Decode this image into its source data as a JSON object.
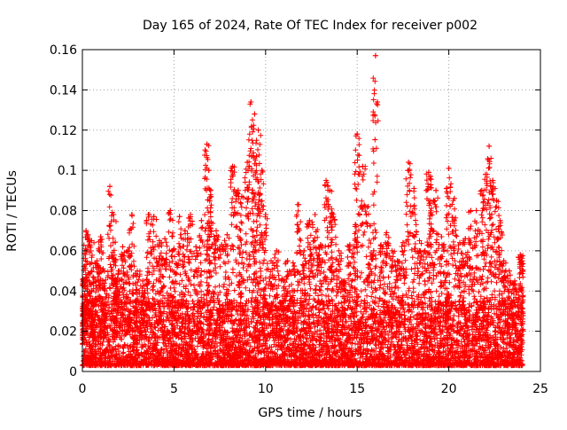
{
  "chart_data": {
    "type": "scatter",
    "title": "Day 165 of 2024, Rate Of TEC Index for receiver p002",
    "xlabel": "GPS time / hours",
    "ylabel": "ROTI / TECUs",
    "xlim": [
      0,
      25
    ],
    "ylim": [
      0,
      0.16
    ],
    "x_ticks": [
      0,
      5,
      10,
      15,
      20,
      25
    ],
    "x_tick_labels": [
      "0",
      "5",
      "10",
      "15",
      "20",
      "25"
    ],
    "y_ticks": [
      0,
      0.02,
      0.04,
      0.06,
      0.08,
      0.1,
      0.12,
      0.14,
      0.16
    ],
    "y_tick_labels": [
      "0",
      "0.02",
      "0.04",
      "0.06",
      "0.08",
      "0.1",
      "0.12",
      "0.14",
      "0.16"
    ],
    "grid": true,
    "marker": "+",
    "series_color": "#ff0000",
    "series": [
      {
        "name": "ROTI",
        "x": [
          0.05,
          0.1,
          0.2,
          0.3,
          0.5,
          0.6,
          0.8,
          1.0,
          1.2,
          1.5,
          1.7,
          1.8,
          2.0,
          2.2,
          2.5,
          2.7,
          3.0,
          3.3,
          3.6,
          3.9,
          4.2,
          4.5,
          4.8,
          5.0,
          5.3,
          5.6,
          5.9,
          6.2,
          6.5,
          6.8,
          6.9,
          7.0,
          7.3,
          7.6,
          7.9,
          8.2,
          8.5,
          8.7,
          9.0,
          9.2,
          9.4,
          9.5,
          9.6,
          9.8,
          10.0,
          10.3,
          10.6,
          10.9,
          11.2,
          11.5,
          11.8,
          12.1,
          12.4,
          12.7,
          13.0,
          13.3,
          13.5,
          13.7,
          14.0,
          14.3,
          14.6,
          14.9,
          15.0,
          15.3,
          15.6,
          15.9,
          16.0,
          16.3,
          16.6,
          16.9,
          17.2,
          17.5,
          17.8,
          18.1,
          18.4,
          18.7,
          18.9,
          19.0,
          19.3,
          19.6,
          19.9,
          20.0,
          20.3,
          20.6,
          20.9,
          21.2,
          21.5,
          21.8,
          22.0,
          22.2,
          22.4,
          22.6,
          22.8,
          23.0,
          23.3,
          23.6,
          23.9,
          24.0
        ],
        "y": [
          0.046,
          0.033,
          0.07,
          0.068,
          0.065,
          0.044,
          0.055,
          0.067,
          0.05,
          0.092,
          0.078,
          0.046,
          0.05,
          0.062,
          0.06,
          0.078,
          0.05,
          0.045,
          0.078,
          0.077,
          0.065,
          0.066,
          0.08,
          0.061,
          0.077,
          0.07,
          0.078,
          0.062,
          0.075,
          0.113,
          0.1,
          0.09,
          0.07,
          0.063,
          0.068,
          0.102,
          0.09,
          0.087,
          0.104,
          0.134,
          0.128,
          0.107,
          0.12,
          0.1,
          0.078,
          0.055,
          0.06,
          0.046,
          0.055,
          0.054,
          0.083,
          0.06,
          0.075,
          0.078,
          0.063,
          0.095,
          0.09,
          0.078,
          0.06,
          0.045,
          0.063,
          0.073,
          0.118,
          0.102,
          0.082,
          0.06,
          0.157,
          0.063,
          0.069,
          0.06,
          0.055,
          0.064,
          0.104,
          0.091,
          0.065,
          0.06,
          0.099,
          0.097,
          0.09,
          0.067,
          0.048,
          0.101,
          0.086,
          0.064,
          0.066,
          0.08,
          0.08,
          0.09,
          0.098,
          0.112,
          0.095,
          0.085,
          0.075,
          0.055,
          0.05,
          0.045,
          0.058,
          0.055
        ]
      }
    ],
    "background_band": {
      "description": "dense cloud of low ROTI values between 0.003 and 0.03 TECU/s across the full 0-24 h range",
      "ymin": 0.003,
      "ymax": 0.03
    }
  }
}
